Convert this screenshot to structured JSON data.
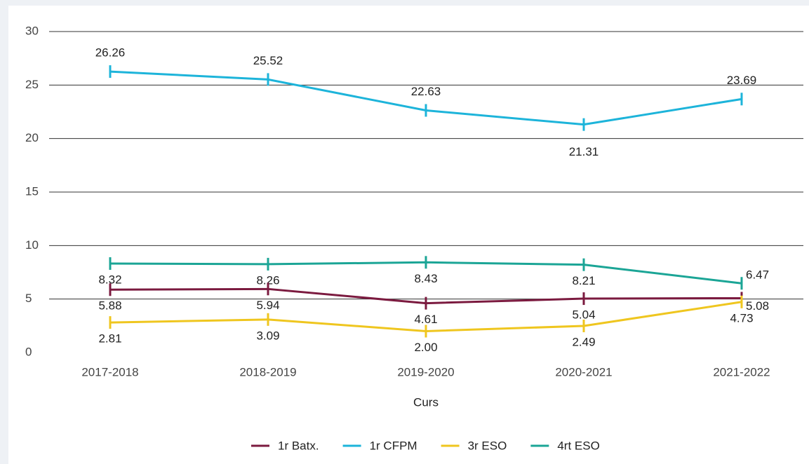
{
  "chart_data": {
    "type": "line",
    "x_label": "Curs",
    "categories": [
      "2017-2018",
      "2018-2019",
      "2019-2020",
      "2020-2021",
      "2021-2022"
    ],
    "series": [
      {
        "name": "1r Batx.",
        "color": "#7b1a3f",
        "values": [
          5.88,
          5.94,
          4.61,
          5.04,
          5.08
        ]
      },
      {
        "name": "1r CFPM",
        "color": "#1db4da",
        "values": [
          26.26,
          25.52,
          22.63,
          21.31,
          23.69
        ]
      },
      {
        "name": "3r ESO",
        "color": "#efc61f",
        "values": [
          2.81,
          3.09,
          2.0,
          2.49,
          4.73
        ],
        "value_labels": [
          "2.81",
          "3.09",
          "2.00",
          "2.49",
          "4.73"
        ]
      },
      {
        "name": "4rt ESO",
        "color": "#1ba596",
        "values": [
          8.32,
          8.26,
          8.43,
          8.21,
          6.47
        ]
      }
    ],
    "ylim": [
      0,
      30
    ],
    "yticks": [
      0,
      5,
      10,
      15,
      20,
      25,
      30
    ],
    "grid": true,
    "legend": "bottom"
  }
}
